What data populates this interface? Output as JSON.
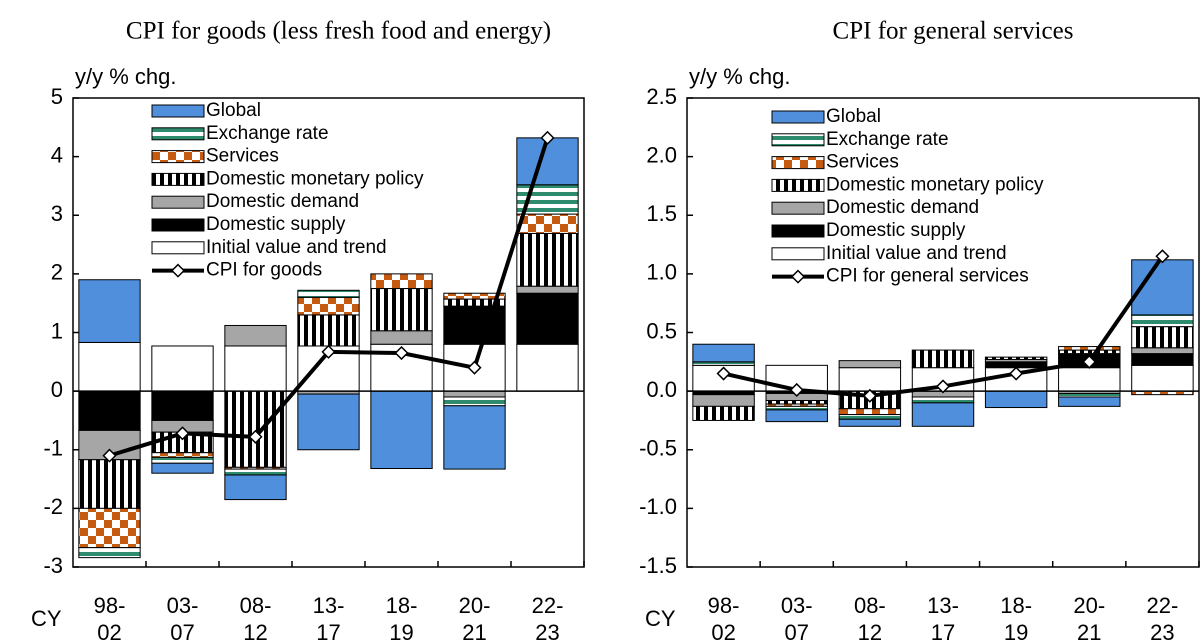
{
  "chart_data": [
    {
      "type": "bar",
      "stacked": true,
      "title": "CPI for goods (less fresh food and energy)",
      "y_label": "y/y % chg.",
      "x_label": "CY",
      "categories": [
        [
          "98-",
          "02"
        ],
        [
          "03-",
          "07"
        ],
        [
          "08-",
          "12"
        ],
        [
          "13-",
          "17"
        ],
        [
          "18-",
          "19"
        ],
        [
          "20-",
          "21"
        ],
        [
          "22-",
          "23"
        ]
      ],
      "ylim": [
        -3,
        5
      ],
      "yticks": [
        -3,
        -2,
        -1,
        0,
        1,
        2,
        3,
        4,
        5
      ],
      "series": [
        {
          "name": "Global",
          "color": "#4f8fdc",
          "values": [
            1.07,
            -0.17,
            -0.42,
            -0.95,
            -1.32,
            -1.08,
            0.8
          ]
        },
        {
          "name": "Exchange rate",
          "color": "#2e8b6e",
          "pattern": "stripes-h",
          "values": [
            -0.17,
            -0.1,
            -0.1,
            0.12,
            0,
            -0.15,
            0.5
          ]
        },
        {
          "name": "Services",
          "color": "#c55a11",
          "pattern": "checker",
          "values": [
            -0.67,
            -0.08,
            -0.03,
            0.3,
            0.25,
            0.1,
            0.33
          ]
        },
        {
          "name": "Domestic monetary policy",
          "color": "#000000",
          "pattern": "stripes-v",
          "values": [
            -0.83,
            -0.35,
            -1.3,
            0.53,
            0.72,
            0.12,
            0.9
          ]
        },
        {
          "name": "Domestic demand",
          "color": "#a6a6a6",
          "values": [
            -0.5,
            -0.2,
            0.35,
            -0.05,
            0.23,
            -0.1,
            0.12
          ]
        },
        {
          "name": "Domestic supply",
          "color": "#000000",
          "values": [
            -0.67,
            -0.5,
            0,
            0,
            0,
            0.65,
            0.87
          ]
        },
        {
          "name": "Initial value and trend",
          "color": "#ffffff",
          "values": [
            0.83,
            0.77,
            0.77,
            0.77,
            0.8,
            0.8,
            0.8
          ]
        },
        {
          "name": "CPI for goods",
          "type": "line",
          "color": "#000000",
          "values": [
            -1.1,
            -0.72,
            -0.78,
            0.67,
            0.65,
            0.4,
            4.32
          ]
        }
      ]
    },
    {
      "type": "bar",
      "stacked": true,
      "title": "CPI for general services",
      "y_label": "y/y % chg.",
      "x_label": "CY",
      "categories": [
        [
          "98-",
          "02"
        ],
        [
          "03-",
          "07"
        ],
        [
          "08-",
          "12"
        ],
        [
          "13-",
          "17"
        ],
        [
          "18-",
          "19"
        ],
        [
          "20-",
          "21"
        ],
        [
          "22-",
          "23"
        ]
      ],
      "ylim": [
        -1.5,
        2.5
      ],
      "yticks": [
        -1.5,
        {
          "value": -1,
          "label": "-1.0"
        },
        -0.5,
        {
          "value": 0,
          "label": "0.0"
        },
        0.5,
        {
          "value": 1,
          "label": "1.0"
        },
        1.5,
        {
          "value": 2,
          "label": "2.0"
        },
        2.5
      ],
      "series": [
        {
          "name": "Global",
          "color": "#4f8fdc",
          "values": [
            0.15,
            -0.1,
            -0.06,
            -0.2,
            -0.14,
            -0.08,
            0.47
          ]
        },
        {
          "name": "Exchange rate",
          "color": "#2e8b6e",
          "pattern": "stripes-h",
          "values": [
            0.03,
            -0.03,
            -0.04,
            -0.05,
            0,
            -0.03,
            0.1
          ]
        },
        {
          "name": "Services",
          "color": "#c55a11",
          "pattern": "checker",
          "values": [
            0,
            -0.02,
            -0.05,
            0,
            0,
            0.03,
            -0.03
          ]
        },
        {
          "name": "Domestic monetary policy",
          "color": "#000000",
          "pattern": "stripes-v",
          "values": [
            -0.12,
            -0.03,
            -0.15,
            0.15,
            0.02,
            0.03,
            0.18
          ]
        },
        {
          "name": "Domestic demand",
          "color": "#a6a6a6",
          "values": [
            -0.1,
            -0.06,
            0.06,
            -0.05,
            0.02,
            -0.02,
            0.05
          ]
        },
        {
          "name": "Domestic supply",
          "color": "#000000",
          "values": [
            -0.03,
            -0.02,
            0,
            0,
            0.05,
            0.12,
            0.1
          ]
        },
        {
          "name": "Initial value and trend",
          "color": "#ffffff",
          "values": [
            0.22,
            0.22,
            0.2,
            0.2,
            0.2,
            0.2,
            0.22
          ]
        },
        {
          "name": "CPI for general services",
          "type": "line",
          "color": "#000000",
          "values": [
            0.15,
            0.01,
            -0.04,
            0.04,
            0.15,
            0.25,
            1.15
          ]
        }
      ]
    }
  ]
}
